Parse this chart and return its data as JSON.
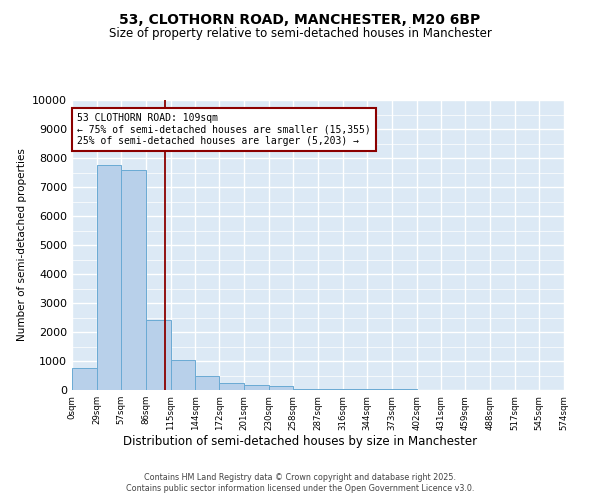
{
  "title1": "53, CLOTHORN ROAD, MANCHESTER, M20 6BP",
  "title2": "Size of property relative to semi-detached houses in Manchester",
  "xlabel": "Distribution of semi-detached houses by size in Manchester",
  "ylabel": "Number of semi-detached properties",
  "annotation_label": "53 CLOTHORN ROAD: 109sqm",
  "annotation_line1": "← 75% of semi-detached houses are smaller (15,355)",
  "annotation_line2": "25% of semi-detached houses are larger (5,203) →",
  "property_size": 109,
  "footer1": "Contains HM Land Registry data © Crown copyright and database right 2025.",
  "footer2": "Contains public sector information licensed under the Open Government Licence v3.0.",
  "bar_color": "#b8d0ea",
  "bar_edge_color": "#6aaad4",
  "bg_color": "#dce9f5",
  "vline_color": "#8b0000",
  "annotation_box_edge": "#8b0000",
  "annotation_box_bg": "#ffffff",
  "bin_edges": [
    0,
    29,
    57,
    86,
    115,
    144,
    172,
    201,
    230,
    258,
    287,
    316,
    344,
    373,
    402,
    431,
    459,
    488,
    517,
    545,
    574
  ],
  "bin_labels": [
    "0sqm",
    "29sqm",
    "57sqm",
    "86sqm",
    "115sqm",
    "144sqm",
    "172sqm",
    "201sqm",
    "230sqm",
    "258sqm",
    "287sqm",
    "316sqm",
    "344sqm",
    "373sqm",
    "402sqm",
    "431sqm",
    "459sqm",
    "488sqm",
    "517sqm",
    "545sqm",
    "574sqm"
  ],
  "counts": [
    750,
    7750,
    7600,
    2400,
    1050,
    500,
    230,
    180,
    150,
    50,
    50,
    40,
    30,
    20,
    10,
    5,
    5,
    5,
    5,
    5
  ],
  "ylim": [
    0,
    10000
  ],
  "yticks": [
    0,
    1000,
    2000,
    3000,
    4000,
    5000,
    6000,
    7000,
    8000,
    9000,
    10000
  ]
}
